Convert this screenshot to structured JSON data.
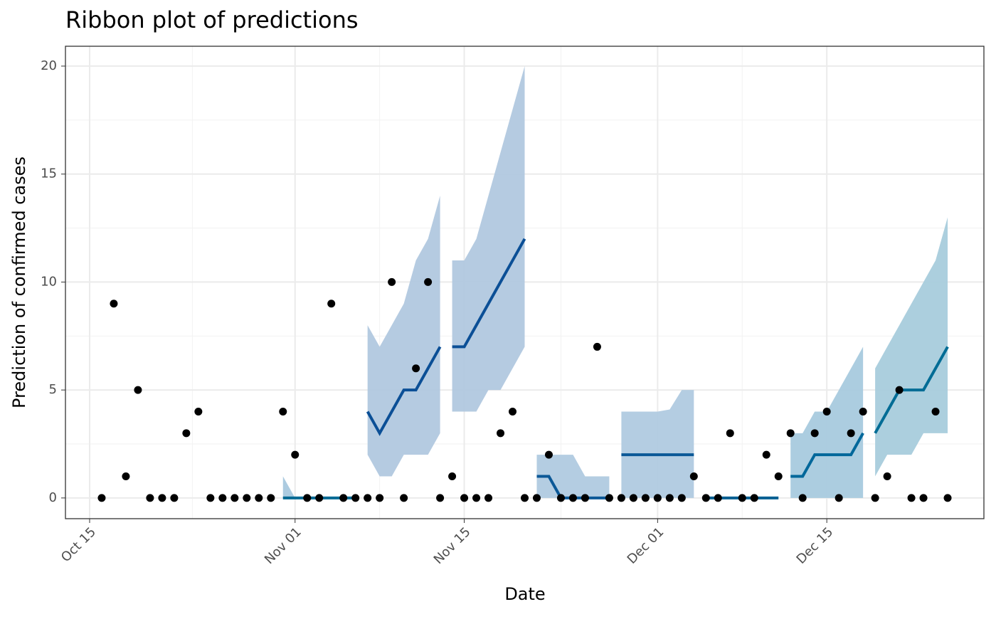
{
  "chart_data": {
    "type": "ribbon",
    "title": "Ribbon plot of predictions",
    "x_label": "Date",
    "y_label": "Prediction of confirmed cases",
    "xlim": [
      "Oct 13",
      "Dec 28"
    ],
    "xticks": [
      "Oct 15",
      "Nov 01",
      "Nov 15",
      "Dec 01",
      "Dec 15"
    ],
    "ylim": [
      -0.96,
      20.92
    ],
    "yticks": [
      0,
      5,
      10,
      15,
      20
    ],
    "grid": true,
    "points": {
      "color": "#000000",
      "x": [
        "Oct 16",
        "Oct 17",
        "Oct 18",
        "Oct 19",
        "Oct 20",
        "Oct 21",
        "Oct 22",
        "Oct 23",
        "Oct 24",
        "Oct 25",
        "Oct 26",
        "Oct 27",
        "Oct 28",
        "Oct 29",
        "Oct 30",
        "Oct 31",
        "Nov 01",
        "Nov 02",
        "Nov 03",
        "Nov 04",
        "Nov 05",
        "Nov 06",
        "Nov 07",
        "Nov 08",
        "Nov 09",
        "Nov 10",
        "Nov 11",
        "Nov 12",
        "Nov 13",
        "Nov 14",
        "Nov 15",
        "Nov 16",
        "Nov 17",
        "Nov 18",
        "Nov 19",
        "Nov 20",
        "Nov 21",
        "Nov 22",
        "Nov 23",
        "Nov 24",
        "Nov 25",
        "Nov 26",
        "Nov 27",
        "Nov 28",
        "Nov 29",
        "Nov 30",
        "Dec 01",
        "Dec 02",
        "Dec 03",
        "Dec 04",
        "Dec 05",
        "Dec 06",
        "Dec 07",
        "Dec 08",
        "Dec 09",
        "Dec 10",
        "Dec 11",
        "Dec 12",
        "Dec 13",
        "Dec 14",
        "Dec 15",
        "Dec 16",
        "Dec 17",
        "Dec 18",
        "Dec 19",
        "Dec 20",
        "Dec 21",
        "Dec 22",
        "Dec 23",
        "Dec 24",
        "Dec 25"
      ],
      "values": [
        0,
        9,
        1,
        5,
        0,
        0,
        0,
        3,
        4,
        0,
        0,
        0,
        0,
        0,
        0,
        4,
        2,
        0,
        0,
        9,
        0,
        0,
        0,
        0,
        10,
        0,
        6,
        10,
        0,
        1,
        0,
        0,
        0,
        3,
        4,
        0,
        0,
        2,
        0,
        0,
        0,
        7,
        0,
        0,
        0,
        0,
        0,
        0,
        0,
        1,
        0,
        0,
        3,
        0,
        0,
        2,
        1,
        3,
        0,
        3,
        4,
        0,
        3,
        4,
        0,
        1,
        5,
        0,
        0,
        4,
        0
      ]
    },
    "ribbons": [
      {
        "color": "#006a94",
        "fill": "#a8c8de",
        "x": [
          "Oct 31",
          "Nov 01",
          "Nov 02",
          "Nov 03",
          "Nov 04",
          "Nov 05",
          "Nov 06"
        ],
        "median": [
          0,
          0,
          0,
          0,
          0,
          0,
          0
        ],
        "lower": [
          0,
          0,
          0,
          0,
          0,
          0,
          0
        ],
        "upper": [
          1,
          0,
          0,
          0,
          0,
          0,
          0
        ]
      },
      {
        "color": "#0b4f96",
        "fill": "#b1c8df",
        "x": [
          "Nov 07",
          "Nov 08",
          "Nov 09",
          "Nov 10",
          "Nov 11",
          "Nov 12",
          "Nov 13"
        ],
        "median": [
          4,
          3,
          4,
          5,
          5,
          6,
          7
        ],
        "lower": [
          2,
          1,
          1,
          2,
          2,
          2,
          3
        ],
        "upper": [
          8,
          7,
          8,
          9,
          11,
          12,
          14
        ]
      },
      {
        "color": "#0b4f96",
        "fill": "#b1c8df",
        "x": [
          "Nov 14",
          "Nov 15",
          "Nov 16",
          "Nov 17",
          "Nov 18",
          "Nov 19",
          "Nov 20"
        ],
        "median": [
          7,
          7,
          8,
          9,
          10,
          11,
          12
        ],
        "lower": [
          4,
          4,
          4,
          5,
          5,
          6,
          7
        ],
        "upper": [
          11,
          11,
          12,
          14,
          16,
          18,
          20
        ]
      },
      {
        "color": "#0b5897",
        "fill": "#b0cae0",
        "x": [
          "Nov 21",
          "Nov 22",
          "Nov 23",
          "Nov 24",
          "Nov 25",
          "Nov 26",
          "Nov 27"
        ],
        "median": [
          1,
          1,
          0,
          0,
          0,
          0,
          0
        ],
        "lower": [
          0,
          0,
          0,
          0,
          0,
          0,
          0
        ],
        "upper": [
          2,
          2,
          2,
          2,
          1,
          1,
          1
        ]
      },
      {
        "color": "#0b5897",
        "fill": "#b0cae0",
        "x": [
          "Nov 28",
          "Nov 29",
          "Nov 30",
          "Dec 01",
          "Dec 02",
          "Dec 03",
          "Dec 04"
        ],
        "median": [
          2,
          2,
          2,
          2,
          2,
          2,
          2
        ],
        "lower": [
          0,
          0,
          0,
          0,
          0,
          0,
          0
        ],
        "upper": [
          4,
          4,
          4,
          4,
          4.1,
          5,
          5
        ]
      },
      {
        "color": "#005f92",
        "fill": "#a9cbe0",
        "x": [
          "Dec 05",
          "Dec 06",
          "Dec 07",
          "Dec 08",
          "Dec 09",
          "Dec 10",
          "Dec 11"
        ],
        "median": [
          0,
          0,
          0,
          0,
          0,
          0,
          0
        ],
        "lower": [
          0,
          0,
          0,
          0,
          0,
          0,
          0
        ],
        "upper": [
          0,
          0,
          0,
          0,
          0,
          0,
          0
        ]
      },
      {
        "color": "#00679a",
        "fill": "#a8cade",
        "x": [
          "Dec 12",
          "Dec 13",
          "Dec 14",
          "Dec 15",
          "Dec 16",
          "Dec 17",
          "Dec 18"
        ],
        "median": [
          1,
          1,
          2,
          2,
          2,
          2,
          3
        ],
        "lower": [
          0,
          0,
          0,
          0,
          0,
          0,
          0
        ],
        "upper": [
          3,
          3,
          4,
          4,
          5,
          6,
          7
        ]
      },
      {
        "color": "#006c95",
        "fill": "#a8ccdc",
        "x": [
          "Dec 19",
          "Dec 20",
          "Dec 21",
          "Dec 22",
          "Dec 23",
          "Dec 24",
          "Dec 25"
        ],
        "median": [
          3,
          4,
          5,
          5,
          5,
          6,
          7
        ],
        "lower": [
          1,
          2,
          2,
          2,
          3,
          3,
          3
        ],
        "upper": [
          6,
          7,
          8,
          9,
          10,
          11,
          13
        ]
      }
    ]
  }
}
